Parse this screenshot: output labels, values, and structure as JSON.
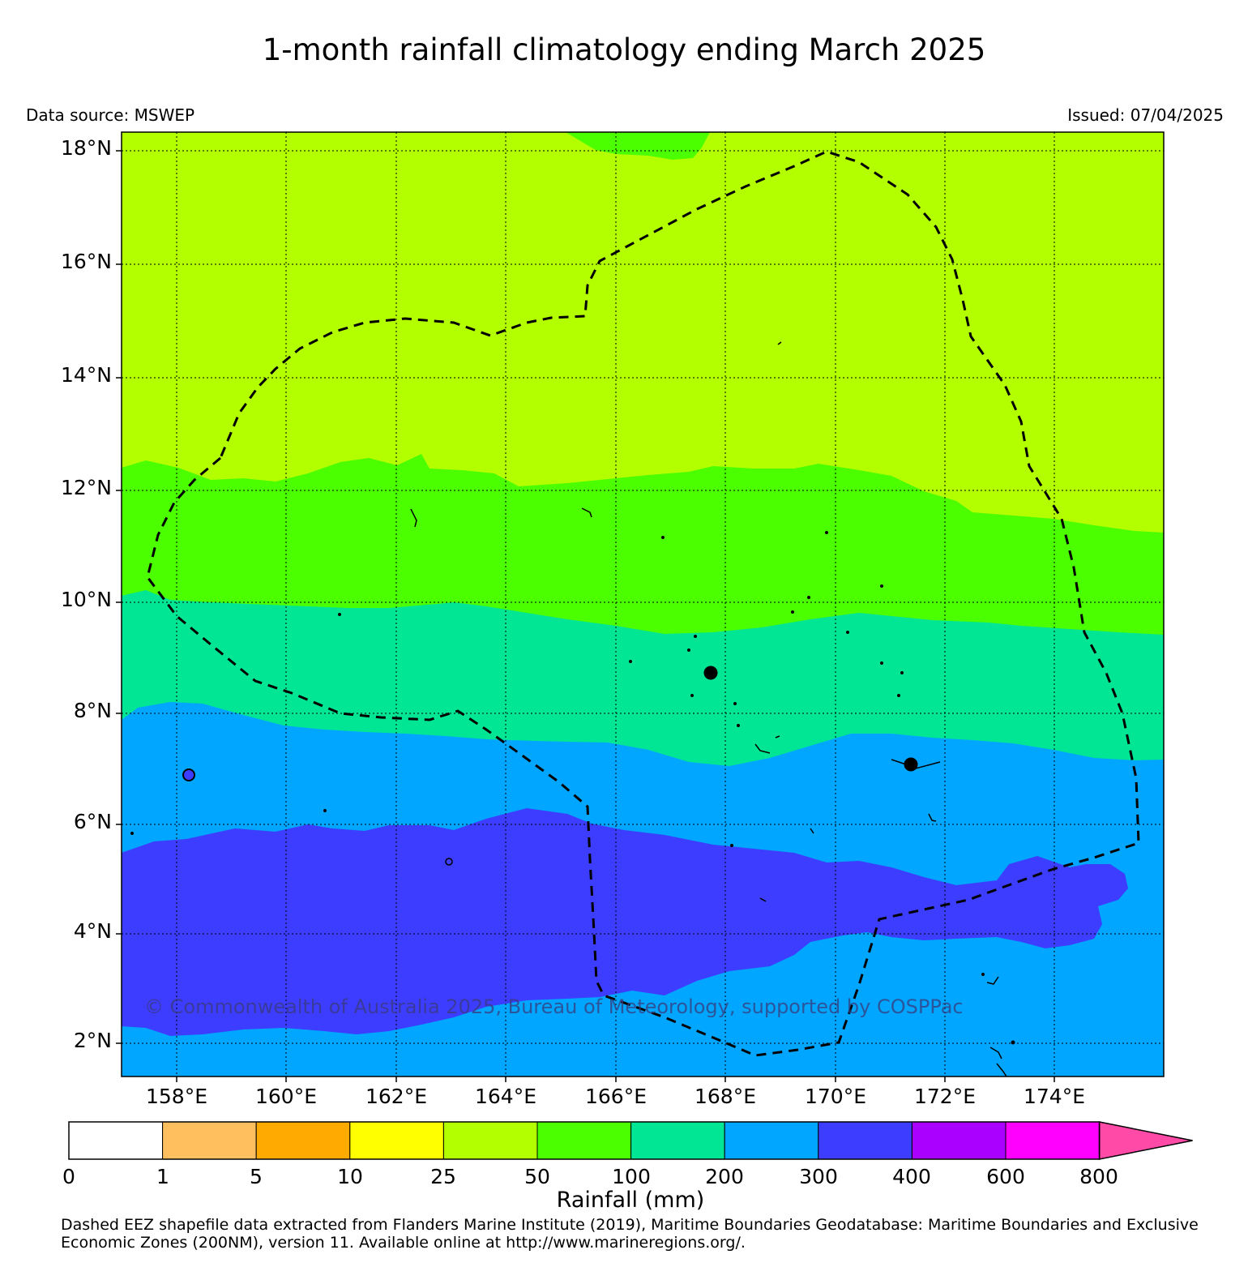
{
  "header": {
    "title": "1-month rainfall climatology ending March 2025",
    "data_source": "Data source: MSWEP",
    "issued": "Issued: 07/04/2025"
  },
  "map": {
    "lat_labels": [
      "18°N",
      "16°N",
      "14°N",
      "12°N",
      "10°N",
      "8°N",
      "6°N",
      "4°N",
      "2°N"
    ],
    "lon_labels": [
      "158°E",
      "160°E",
      "162°E",
      "164°E",
      "166°E",
      "168°E",
      "170°E",
      "172°E",
      "174°E"
    ],
    "colors": {
      "band_25_50": "#b3ff00",
      "band_50_100": "#4cff00",
      "band_100_200": "#00e695",
      "band_200_300": "#00a6ff",
      "band_300_400": "#3d3dff",
      "island": "#000000",
      "eez_boundary": "#000000"
    },
    "copyright": "© Commonwealth of Australia 2025, Bureau of Meteorology, supported by COSPPac"
  },
  "colorbar": {
    "labels": [
      "0",
      "1",
      "5",
      "10",
      "25",
      "50",
      "100",
      "200",
      "300",
      "400",
      "600",
      "800"
    ],
    "colors": [
      "#ffffff",
      "#ffbf5f",
      "#ffaa00",
      "#ffff00",
      "#b3ff00",
      "#4cff00",
      "#00e695",
      "#00a6ff",
      "#3d3dff",
      "#aa00ff",
      "#ff00ff"
    ],
    "extend_color": "#ff4aa8",
    "title": "Rainfall (mm)"
  },
  "credit": "Dashed EEZ shapefile data extracted from Flanders Marine Institute (2019), Maritime Boundaries Geodatabase: Maritime Boundaries and Exclusive Economic Zones (200NM), version 11. Available online at http://www.marineregions.org/."
}
